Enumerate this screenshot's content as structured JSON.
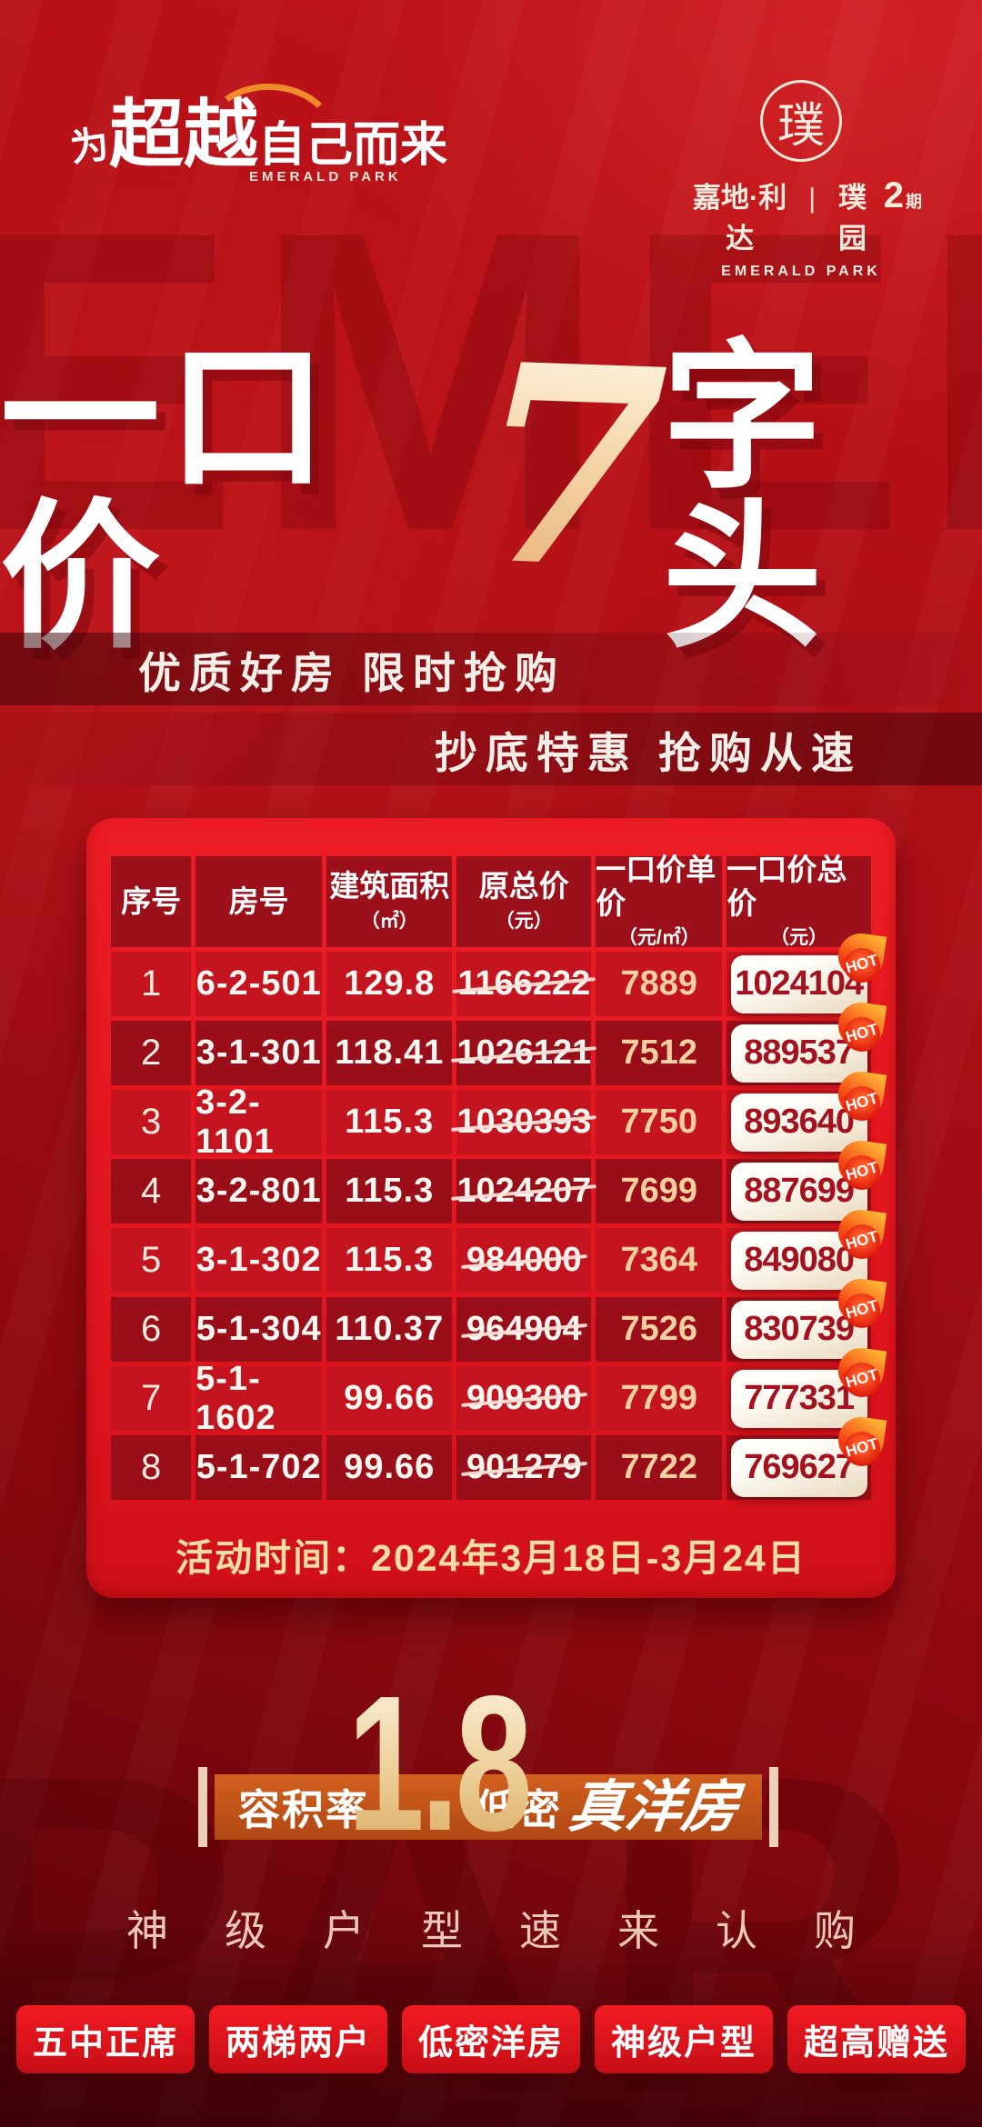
{
  "brand_left": {
    "prefix": "为",
    "emphasis": "超越",
    "suffix": "自己而来",
    "english": "EMERALD PARK"
  },
  "brand_right": {
    "seal_char": "璞",
    "name": "嘉地·利达",
    "divider": "|",
    "project": "璞园",
    "phase_number": "2",
    "phase_suffix": "期",
    "english": "EMERALD PARK"
  },
  "hero": {
    "title_left": "一口价",
    "title_number": "7",
    "title_right": "字头",
    "subtitle_line1": "优质好房 限时抢购",
    "subtitle_line2": "抄底特惠 抢购从速",
    "watermark_top": "EMERALD",
    "watermark_bottom": "PARK"
  },
  "table": {
    "headers": [
      {
        "label": "序号",
        "sub": ""
      },
      {
        "label": "房号",
        "sub": ""
      },
      {
        "label": "建筑面积",
        "sub": "（㎡）"
      },
      {
        "label": "原总价",
        "sub": "（元）"
      },
      {
        "label": "一口价单价",
        "sub": "（元/㎡）"
      },
      {
        "label": "一口价总价",
        "sub": "（元）"
      }
    ],
    "rows": [
      {
        "no": "1",
        "room": "6-2-501",
        "area": "129.8",
        "original_total": "1166222",
        "deal_unit": "7889",
        "deal_total": "1024104"
      },
      {
        "no": "2",
        "room": "3-1-301",
        "area": "118.41",
        "original_total": "1026121",
        "deal_unit": "7512",
        "deal_total": "889537"
      },
      {
        "no": "3",
        "room": "3-2-1101",
        "area": "115.3",
        "original_total": "1030393",
        "deal_unit": "7750",
        "deal_total": "893640"
      },
      {
        "no": "4",
        "room": "3-2-801",
        "area": "115.3",
        "original_total": "1024207",
        "deal_unit": "7699",
        "deal_total": "887699"
      },
      {
        "no": "5",
        "room": "3-1-302",
        "area": "115.3",
        "original_total": "984000",
        "deal_unit": "7364",
        "deal_total": "849080"
      },
      {
        "no": "6",
        "room": "5-1-304",
        "area": "110.37",
        "original_total": "964904",
        "deal_unit": "7526",
        "deal_total": "830739"
      },
      {
        "no": "7",
        "room": "5-1-1602",
        "area": "99.66",
        "original_total": "909300",
        "deal_unit": "7799",
        "deal_total": "777331"
      },
      {
        "no": "8",
        "room": "5-1-702",
        "area": "99.66",
        "original_total": "901279",
        "deal_unit": "7722",
        "deal_total": "769627"
      }
    ],
    "hot_label": "HOT",
    "event_time": "活动时间：2024年3月18日-3月24日"
  },
  "far": {
    "label": "容积率",
    "value": "1.8",
    "right_normal": "低密",
    "right_script": "真洋房"
  },
  "cta": {
    "line": "神级户型速来认购"
  },
  "tags": [
    "五中正席",
    "两梯两户",
    "低密洋房",
    "神级户型",
    "超高赠送"
  ],
  "colors": {
    "background_red": "#a50d14",
    "card_red": "#e5171f",
    "header_cell_red": "#9c101b",
    "row_odd_red": "#c3141f",
    "row_even_red": "#990e19",
    "gold_text": "#f6d09e",
    "price_text_red": "#a3121e",
    "band_orange": "#c9571c",
    "tag_red": "#e2131b"
  }
}
